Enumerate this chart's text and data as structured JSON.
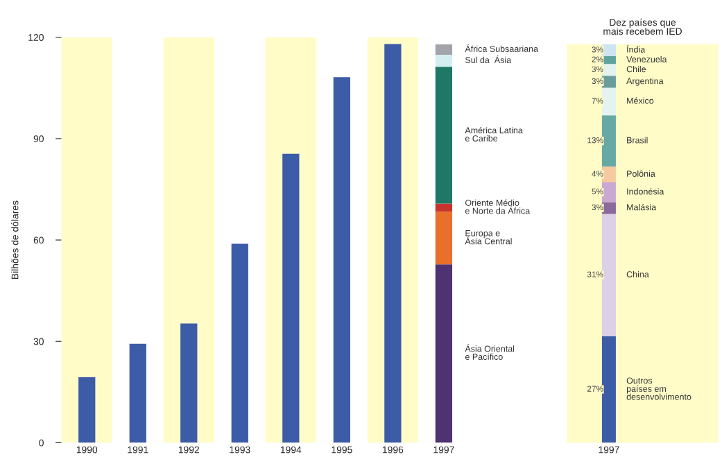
{
  "chart_data": [
    {
      "type": "bar",
      "stacked": true,
      "categories": [
        "1990",
        "1991",
        "1992",
        "1993",
        "1994",
        "1995",
        "1996",
        "1997"
      ],
      "ylabel": "Bilhões de dólares",
      "ylim": [
        0,
        120
      ],
      "yticks": [
        0,
        30,
        60,
        90,
        120
      ],
      "grid": false,
      "legend": false,
      "bands": [
        {
          "axis": "x",
          "from": "1990",
          "to": "1990",
          "color": "#fffcc8"
        },
        {
          "axis": "x",
          "from": "1992",
          "to": "1992",
          "color": "#fffcc8"
        },
        {
          "axis": "x",
          "from": "1994",
          "to": "1994",
          "color": "#fffcc8"
        },
        {
          "axis": "x",
          "from": "1996",
          "to": "1996",
          "color": "#fffcc8"
        }
      ],
      "series": [
        {
          "color": "#3d5ca8",
          "values": [
            19.4,
            29.3,
            35.3,
            58.9,
            85.5,
            108.2,
            118.0,
            null
          ]
        },
        {
          "name": "Ásia Oriental\ne Pacífico",
          "color": "#4e3272",
          "values": [
            null,
            null,
            null,
            null,
            null,
            null,
            null,
            52.8
          ]
        },
        {
          "name": "Europa e\nÁsia Central",
          "color": "#e8702a",
          "values": [
            null,
            null,
            null,
            null,
            null,
            null,
            null,
            15.6
          ]
        },
        {
          "name": "Oriente Médio\ne Norte da África",
          "color": "#c8342c",
          "values": [
            null,
            null,
            null,
            null,
            null,
            null,
            null,
            2.4
          ]
        },
        {
          "name": "América Latina\ne Caribe",
          "color": "#1f7866",
          "values": [
            null,
            null,
            null,
            null,
            null,
            null,
            null,
            40.5
          ]
        },
        {
          "name": "Sul da  Ásia",
          "color": "#d4eef0",
          "values": [
            null,
            null,
            null,
            null,
            null,
            null,
            null,
            3.5
          ]
        },
        {
          "name": "África Subsaariana",
          "color": "#a3a3ab",
          "values": [
            null,
            null,
            null,
            null,
            null,
            null,
            null,
            3.1
          ]
        }
      ]
    },
    {
      "type": "bar",
      "stacked": true,
      "title": "Dez países que\nmais recebem IED",
      "categories": [
        "1997"
      ],
      "legend": false,
      "series": [
        {
          "name": "Outros\npaíses em\ndesenvolvimento",
          "color": "#3d5ca8",
          "values": [
            27
          ],
          "value_labels": [
            "27%"
          ]
        },
        {
          "name": "China",
          "color": "#dcd0e6",
          "values": [
            31
          ],
          "value_labels": [
            "31%"
          ]
        },
        {
          "name": "Malásia",
          "color": "#8a6a9c",
          "values": [
            3
          ],
          "value_labels": [
            "3%"
          ]
        },
        {
          "name": "Indonésia",
          "color": "#c9a8d4",
          "values": [
            5
          ],
          "value_labels": [
            "5%"
          ]
        },
        {
          "name": "Polônia",
          "color": "#f6c9a0",
          "values": [
            4
          ],
          "value_labels": [
            "4%"
          ]
        },
        {
          "name": "Brasil",
          "color": "#68a8a4",
          "values": [
            13
          ],
          "value_labels": [
            "13%"
          ]
        },
        {
          "name": "México",
          "color": "#e4f2f2",
          "values": [
            7
          ],
          "value_labels": [
            "7%"
          ]
        },
        {
          "name": "Argentina",
          "color": "#6a9c9c",
          "values": [
            3
          ],
          "value_labels": [
            "3%"
          ]
        },
        {
          "name": "Chile",
          "color": "#e2f2ee",
          "values": [
            3
          ],
          "value_labels": [
            "3%"
          ]
        },
        {
          "name": "Venezuela",
          "color": "#5fa49c",
          "values": [
            2
          ],
          "value_labels": [
            "2%"
          ]
        },
        {
          "name": "Índia",
          "color": "#cde4f2",
          "values": [
            3
          ],
          "value_labels": [
            "3%"
          ]
        }
      ]
    }
  ]
}
